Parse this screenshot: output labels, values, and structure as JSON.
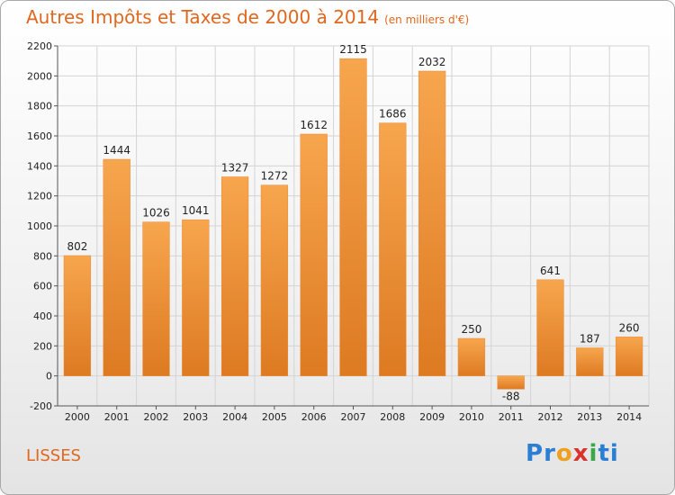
{
  "title": "Autres Impôts et Taxes de 2000 à 2014",
  "unit_note": "(en milliers d'€)",
  "city": "LISSES",
  "logo": {
    "text": "Proxiti",
    "letter_colors": [
      "#2a7fd4",
      "#2a7fd4",
      "#f0a020",
      "#d9342b",
      "#3aa845",
      "#2a7fd4",
      "#2a7fd4"
    ]
  },
  "colors": {
    "bar_light": "#f7a64e",
    "bar_dark": "#dd7a22",
    "accent": "#e0671e"
  },
  "chart_data": {
    "type": "bar",
    "title": "Autres Impôts et Taxes de 2000 à 2014",
    "categories": [
      "2000",
      "2001",
      "2002",
      "2003",
      "2004",
      "2005",
      "2006",
      "2007",
      "2008",
      "2009",
      "2010",
      "2011",
      "2012",
      "2013",
      "2014"
    ],
    "values": [
      802,
      1444,
      1026,
      1041,
      1327,
      1272,
      1612,
      2115,
      1686,
      2032,
      250,
      -88,
      641,
      187,
      260
    ],
    "ylim": [
      -200,
      2200
    ],
    "yticks": [
      -200,
      0,
      200,
      400,
      600,
      800,
      1000,
      1200,
      1400,
      1600,
      1800,
      2000,
      2200
    ],
    "grid": true,
    "xlabel": "",
    "ylabel": ""
  }
}
